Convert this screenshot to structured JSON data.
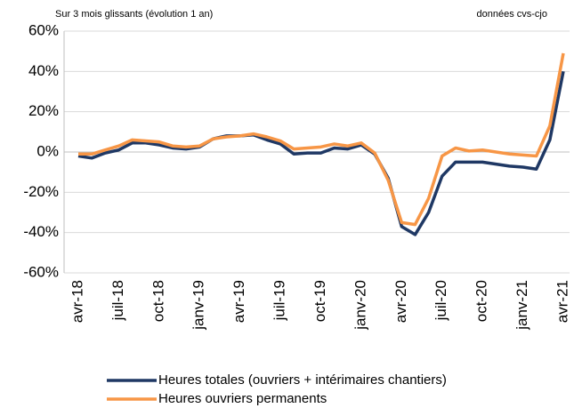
{
  "chart_data": {
    "type": "line",
    "subtitle": "Sur 3 mois glissants (évolution 1 an)",
    "note": "données cvs-cjo",
    "categories": [
      "avr-18",
      null,
      null,
      "juil-18",
      null,
      null,
      "oct-18",
      null,
      null,
      "janv-19",
      null,
      null,
      "avr-19",
      null,
      null,
      "juil-19",
      null,
      null,
      "oct-19",
      null,
      null,
      "janv-20",
      null,
      null,
      "avr-20",
      null,
      null,
      "juil-20",
      null,
      null,
      "oct-20",
      null,
      null,
      "janv-21",
      null,
      null,
      "avr-21"
    ],
    "series": [
      {
        "name": "Heures totales (ouvriers + intérimaires chantiers)",
        "color": "#1f3864",
        "values": [
          -2,
          -3,
          -0.5,
          1,
          4.5,
          4.5,
          3.5,
          2,
          1.5,
          2.5,
          6.5,
          8,
          8,
          8.5,
          6,
          4,
          -1,
          -0.5,
          -0.5,
          2,
          1.5,
          3.5,
          -1,
          -13,
          -37,
          -41,
          -30,
          -12,
          -5,
          -5,
          -5,
          -6,
          -7,
          -7.5,
          -8.5,
          6,
          40
        ]
      },
      {
        "name": "Heures ouvriers permanents",
        "color": "#f79646",
        "values": [
          -1,
          -1,
          1,
          3,
          6,
          5.5,
          5,
          3,
          2.5,
          3,
          6.5,
          7.5,
          8,
          9,
          7.5,
          5.5,
          1.5,
          2,
          2.5,
          4,
          3,
          4.5,
          -0.5,
          -14,
          -35,
          -36,
          -23,
          -2,
          2,
          0.5,
          1,
          0,
          -1,
          -1.5,
          -2,
          13,
          49
        ]
      }
    ],
    "ylim": [
      -60,
      60
    ],
    "yticks": [
      {
        "value": -60,
        "label": "-60%"
      },
      {
        "value": -40,
        "label": "-40%"
      },
      {
        "value": -20,
        "label": "-20%"
      },
      {
        "value": 0,
        "label": "0%"
      },
      {
        "value": 20,
        "label": "20%"
      },
      {
        "value": 40,
        "label": "40%"
      },
      {
        "value": 60,
        "label": "60%"
      }
    ],
    "grid": true
  }
}
